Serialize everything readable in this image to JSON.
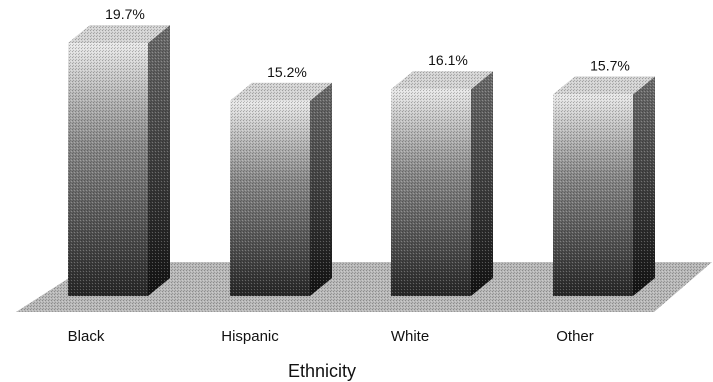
{
  "chart_data": {
    "type": "bar",
    "categories": [
      "Black",
      "Hispanic",
      "White",
      "Other"
    ],
    "values": [
      19.7,
      15.2,
      16.1,
      15.7
    ],
    "value_labels": [
      "19.7%",
      "15.2%",
      "16.1%",
      "15.7%"
    ],
    "xlabel": "Ethnicity",
    "ylabel": "",
    "title": "",
    "grid": false,
    "legend": "none",
    "style": "3d grayscale"
  }
}
